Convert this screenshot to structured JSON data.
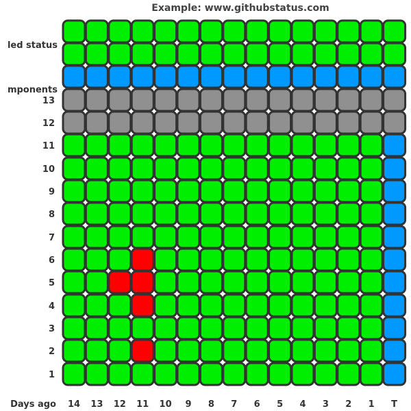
{
  "chart_data": {
    "type": "heatmap",
    "title": "Example: www.githubstatus.com",
    "xlabel": "Days ago",
    "x_ticks": [
      "14",
      "13",
      "12",
      "11",
      "10",
      "9",
      "8",
      "7",
      "6",
      "5",
      "4",
      "3",
      "2",
      "1",
      "T"
    ],
    "rows": [
      {
        "label": "...led status",
        "values": [
          "green",
          "green",
          "green",
          "green",
          "green",
          "green",
          "green",
          "green",
          "green",
          "green",
          "green",
          "green",
          "green",
          "green",
          "green"
        ]
      },
      {
        "label": "",
        "values": [
          "green",
          "green",
          "green",
          "green",
          "green",
          "green",
          "green",
          "green",
          "green",
          "green",
          "green",
          "green",
          "green",
          "green",
          "green"
        ]
      },
      {
        "label": "",
        "values": [
          "blue",
          "blue",
          "blue",
          "blue",
          "blue",
          "blue",
          "blue",
          "blue",
          "blue",
          "blue",
          "blue",
          "blue",
          "blue",
          "blue",
          "blue"
        ]
      },
      {
        "label": "...mponents",
        "values": []
      },
      {
        "label": "13",
        "values": [
          "gray",
          "gray",
          "gray",
          "gray",
          "gray",
          "gray",
          "gray",
          "gray",
          "gray",
          "gray",
          "gray",
          "gray",
          "gray",
          "gray",
          "gray"
        ]
      },
      {
        "label": "12",
        "values": [
          "gray",
          "gray",
          "gray",
          "gray",
          "gray",
          "gray",
          "gray",
          "gray",
          "gray",
          "gray",
          "gray",
          "gray",
          "gray",
          "gray",
          "gray"
        ]
      },
      {
        "label": "11",
        "values": [
          "green",
          "green",
          "green",
          "green",
          "green",
          "green",
          "green",
          "green",
          "green",
          "green",
          "green",
          "green",
          "green",
          "green",
          "blue"
        ]
      },
      {
        "label": "10",
        "values": [
          "green",
          "green",
          "green",
          "green",
          "green",
          "green",
          "green",
          "green",
          "green",
          "green",
          "green",
          "green",
          "green",
          "green",
          "blue"
        ]
      },
      {
        "label": "9",
        "values": [
          "green",
          "green",
          "green",
          "green",
          "green",
          "green",
          "green",
          "green",
          "green",
          "green",
          "green",
          "green",
          "green",
          "green",
          "blue"
        ]
      },
      {
        "label": "8",
        "values": [
          "green",
          "green",
          "green",
          "green",
          "green",
          "green",
          "green",
          "green",
          "green",
          "green",
          "green",
          "green",
          "green",
          "green",
          "blue"
        ]
      },
      {
        "label": "7",
        "values": [
          "green",
          "green",
          "green",
          "green",
          "green",
          "green",
          "green",
          "green",
          "green",
          "green",
          "green",
          "green",
          "green",
          "green",
          "blue"
        ]
      },
      {
        "label": "6",
        "values": [
          "green",
          "green",
          "green",
          "red",
          "green",
          "green",
          "green",
          "green",
          "green",
          "green",
          "green",
          "green",
          "green",
          "green",
          "blue"
        ]
      },
      {
        "label": "5",
        "values": [
          "green",
          "green",
          "red",
          "red",
          "green",
          "green",
          "green",
          "green",
          "green",
          "green",
          "green",
          "green",
          "green",
          "green",
          "blue"
        ]
      },
      {
        "label": "4",
        "values": [
          "green",
          "green",
          "green",
          "red",
          "green",
          "green",
          "green",
          "green",
          "green",
          "green",
          "green",
          "green",
          "green",
          "green",
          "blue"
        ]
      },
      {
        "label": "3",
        "values": [
          "green",
          "green",
          "green",
          "green",
          "green",
          "green",
          "green",
          "green",
          "green",
          "green",
          "green",
          "green",
          "green",
          "green",
          "blue"
        ]
      },
      {
        "label": "2",
        "values": [
          "green",
          "green",
          "green",
          "red",
          "green",
          "green",
          "green",
          "green",
          "green",
          "green",
          "green",
          "green",
          "green",
          "green",
          "blue"
        ]
      },
      {
        "label": "1",
        "values": [
          "green",
          "green",
          "green",
          "green",
          "green",
          "green",
          "green",
          "green",
          "green",
          "green",
          "green",
          "green",
          "green",
          "green",
          "blue"
        ]
      }
    ],
    "colors": {
      "green": "#00ee00",
      "blue": "#0099ff",
      "gray": "#909090",
      "red": "#ff0000",
      "border": "#333333",
      "text": "#333333",
      "title": "#444444"
    },
    "grid": false,
    "legend": "none"
  }
}
